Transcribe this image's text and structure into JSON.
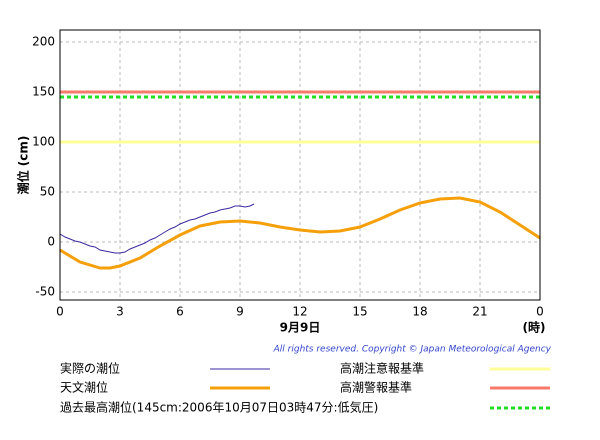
{
  "chart_data": {
    "type": "line",
    "y_label": "潮位 (cm)",
    "date_label": "9月9日",
    "x_unit": "(時)",
    "copyright": "All rights reserved. Copyright © Japan Meteorological Agency",
    "xlim": [
      0,
      24
    ],
    "xticks": [
      0,
      3,
      6,
      9,
      12,
      15,
      18,
      21,
      {
        "value": 24,
        "label": "0"
      }
    ],
    "ylim": [
      -58,
      212
    ],
    "yticks": [
      -50,
      0,
      50,
      100,
      150,
      200
    ],
    "grid": true,
    "series": [
      {
        "name": "実際の潮位",
        "color": "#3a2aa0",
        "x": [
          0,
          0.25,
          0.5,
          0.75,
          1,
          1.25,
          1.5,
          1.75,
          2,
          2.25,
          2.5,
          2.75,
          3,
          3.25,
          3.5,
          3.75,
          4,
          4.25,
          4.5,
          4.75,
          5,
          5.25,
          5.5,
          5.75,
          6,
          6.25,
          6.5,
          6.75,
          7,
          7.25,
          7.5,
          7.75,
          8,
          8.25,
          8.5,
          8.75,
          9,
          9.25,
          9.5,
          9.7
        ],
        "values": [
          8,
          5,
          3,
          1,
          0,
          -2,
          -4,
          -5,
          -8,
          -9,
          -10,
          -11,
          -11,
          -10,
          -7,
          -5,
          -3,
          -1,
          2,
          4,
          7,
          10,
          13,
          15,
          18,
          20,
          22,
          23,
          25,
          27,
          29,
          30,
          32,
          33,
          34,
          36,
          36,
          35,
          36,
          38
        ]
      },
      {
        "name": "天文潮位",
        "color": "#f5a00a",
        "x": [
          0,
          1,
          2,
          2.5,
          3,
          4,
          5,
          6,
          7,
          8,
          9,
          10,
          11,
          12,
          13,
          14,
          15,
          16,
          17,
          18,
          19,
          20,
          21,
          22,
          23,
          24
        ],
        "values": [
          -8,
          -20,
          -26,
          -26,
          -24,
          -16,
          -4,
          7,
          16,
          20,
          21,
          19,
          15,
          12,
          10,
          11,
          15,
          23,
          32,
          39,
          43,
          44,
          40,
          30,
          17,
          4
        ]
      }
    ],
    "reference_lines": [
      {
        "name": "高潮注意報基準",
        "color": "#ffff99",
        "value": 100,
        "style": "solid"
      },
      {
        "name": "高潮警報基準",
        "color": "#f87a6a",
        "value": 150,
        "style": "solid"
      },
      {
        "name": "過去最高潮位(145cm:2006年10月07日03時47分:低気圧)",
        "color": "#22dd22",
        "value": 145,
        "style": "dotted"
      }
    ]
  }
}
